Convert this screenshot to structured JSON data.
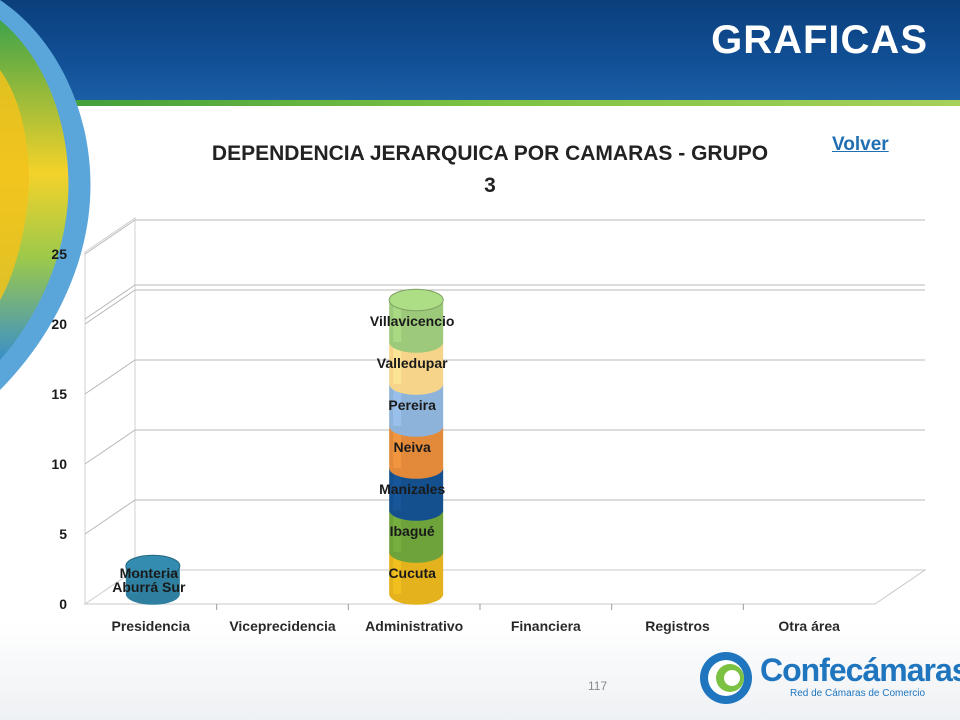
{
  "slide": {
    "title": "GRAFICAS",
    "link_label": "Volver",
    "page_number": "117"
  },
  "brand": {
    "name_part1": "Confe",
    "name_part2": "cámaras",
    "tagline": "Red de Cámaras de Comercio",
    "colors": {
      "blue": "#1f76bf",
      "green": "#7cc242"
    }
  },
  "chart_data": {
    "type": "bar",
    "title": "DEPENDENCIA JERARQUICA POR CAMARAS - GRUPO 3",
    "categories": [
      "Presidencia",
      "Viceprecidencia",
      "Administrativo",
      "Financiera",
      "Registros",
      "Otra área"
    ],
    "ylim": [
      0,
      25
    ],
    "yticks": [
      0,
      5,
      10,
      15,
      20,
      25
    ],
    "grid": true,
    "stacked": true,
    "stacks": [
      {
        "category": "Presidencia",
        "segments": [
          {
            "label": "Aburrá Sur",
            "value": 1,
            "color": "#2f7fa0"
          },
          {
            "label": "Monteria",
            "value": 1,
            "color": "#2f7fa0"
          }
        ]
      },
      {
        "category": "Administrativo",
        "segments": [
          {
            "label": "Cucuta",
            "value": 3,
            "color": "#e3b21c"
          },
          {
            "label": "Ibagué",
            "value": 3,
            "color": "#6da33a"
          },
          {
            "label": "Manizales",
            "value": 3,
            "color": "#14508e"
          },
          {
            "label": "Neiva",
            "value": 3,
            "color": "#e38a3a"
          },
          {
            "label": "Pereira",
            "value": 3,
            "color": "#8eb3da"
          },
          {
            "label": "Valledupar",
            "value": 3,
            "color": "#f6d58a"
          },
          {
            "label": "Villavicencio",
            "value": 3,
            "color": "#9dca7a"
          }
        ]
      }
    ]
  }
}
